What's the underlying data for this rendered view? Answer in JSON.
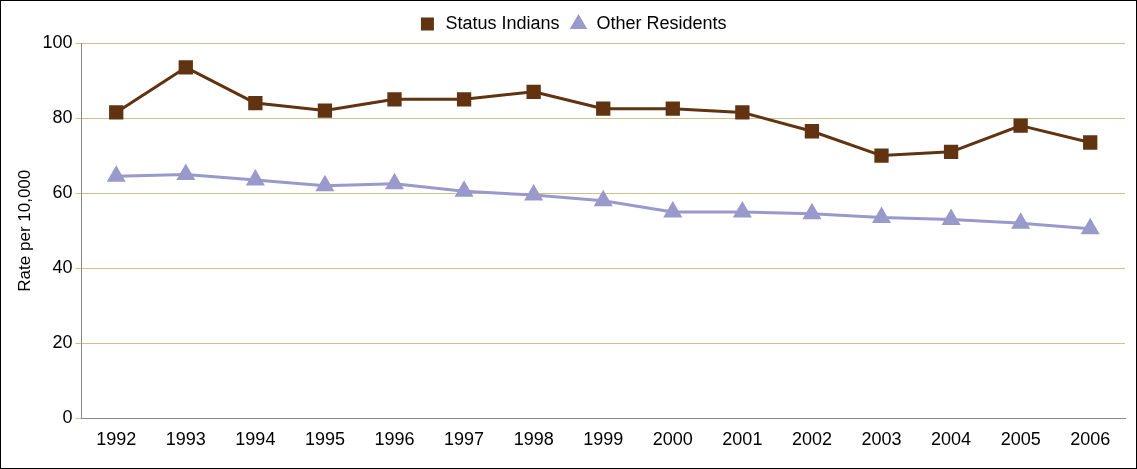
{
  "chart_data": {
    "type": "line",
    "ylabel": "Rate per 10,000",
    "categories": [
      "1992",
      "1993",
      "1994",
      "1995",
      "1996",
      "1997",
      "1998",
      "1999",
      "2000",
      "2001",
      "2002",
      "2003",
      "2004",
      "2005",
      "2006"
    ],
    "series": [
      {
        "name": "Status Indians",
        "color": "#623311",
        "marker": "square",
        "values": [
          81.5,
          93.5,
          84,
          82,
          85,
          85,
          87,
          82.5,
          82.5,
          81.5,
          76.5,
          70,
          71,
          78,
          73.5
        ]
      },
      {
        "name": "Other Residents",
        "color": "#9999cc",
        "marker": "triangle",
        "values": [
          64.5,
          65,
          63.5,
          62,
          62.5,
          60.5,
          59.5,
          58,
          55,
          55,
          54.5,
          53.5,
          53,
          52,
          50.5
        ]
      }
    ],
    "ylim": [
      0,
      100
    ],
    "yticks": [
      0,
      20,
      40,
      60,
      80,
      100
    ],
    "grid": "y",
    "legend": "top",
    "line_style": "solid"
  }
}
